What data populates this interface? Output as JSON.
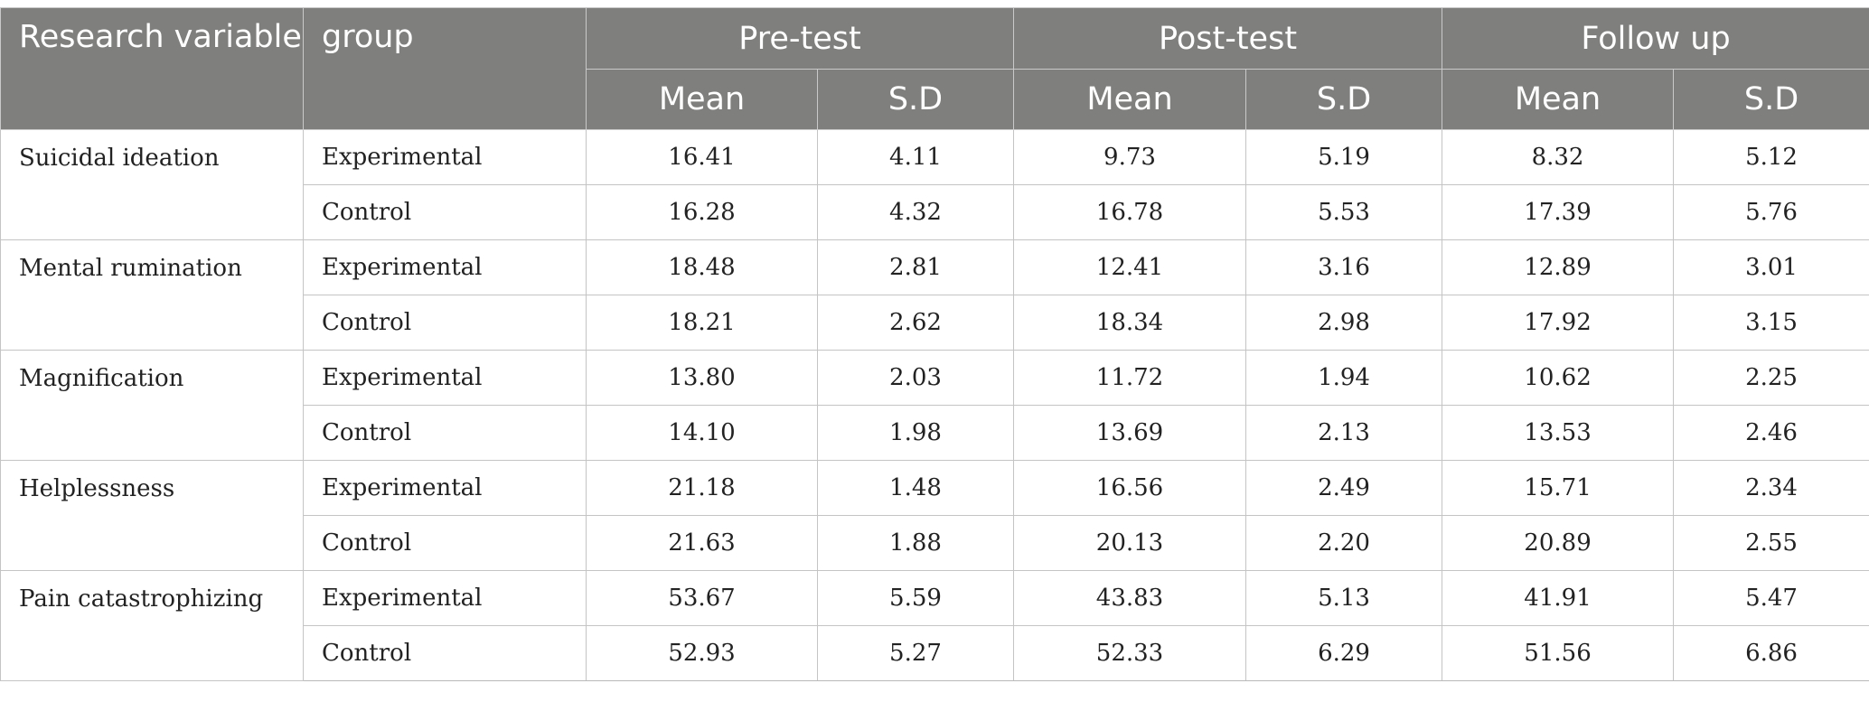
{
  "header": {
    "col_variable": "Research variable",
    "col_group": "group",
    "phases": [
      "Pre-test",
      "Post-test",
      "Follow up"
    ],
    "mean_label": "Mean",
    "sd_label": "S.D"
  },
  "rows": [
    {
      "variable": "Suicidal ideation",
      "groups": [
        {
          "name": "Experimental",
          "values": [
            "16.41",
            "4.11",
            "9.73",
            "5.19",
            "8.32",
            "5.12"
          ]
        },
        {
          "name": "Control",
          "values": [
            "16.28",
            "4.32",
            "16.78",
            "5.53",
            "17.39",
            "5.76"
          ]
        }
      ]
    },
    {
      "variable": "Mental rumination",
      "groups": [
        {
          "name": "Experimental",
          "values": [
            "18.48",
            "2.81",
            "12.41",
            "3.16",
            "12.89",
            "3.01"
          ]
        },
        {
          "name": "Control",
          "values": [
            "18.21",
            "2.62",
            "18.34",
            "2.98",
            "17.92",
            "3.15"
          ]
        }
      ]
    },
    {
      "variable": "Magnification",
      "groups": [
        {
          "name": "Experimental",
          "values": [
            "13.80",
            "2.03",
            "11.72",
            "1.94",
            "10.62",
            "2.25"
          ]
        },
        {
          "name": "Control",
          "values": [
            "14.10",
            "1.98",
            "13.69",
            "2.13",
            "13.53",
            "2.46"
          ]
        }
      ]
    },
    {
      "variable": "Helplessness",
      "groups": [
        {
          "name": "Experimental",
          "values": [
            "21.18",
            "1.48",
            "16.56",
            "2.49",
            "15.71",
            "2.34"
          ]
        },
        {
          "name": "Control",
          "values": [
            "21.63",
            "1.88",
            "20.13",
            "2.20",
            "20.89",
            "2.55"
          ]
        }
      ]
    },
    {
      "variable": "Pain catastrophizing",
      "groups": [
        {
          "name": "Experimental",
          "values": [
            "53.67",
            "5.59",
            "43.83",
            "5.13",
            "41.91",
            "5.47"
          ]
        },
        {
          "name": "Control",
          "values": [
            "52.93",
            "5.27",
            "52.33",
            "6.29",
            "51.56",
            "6.86"
          ]
        }
      ]
    }
  ]
}
